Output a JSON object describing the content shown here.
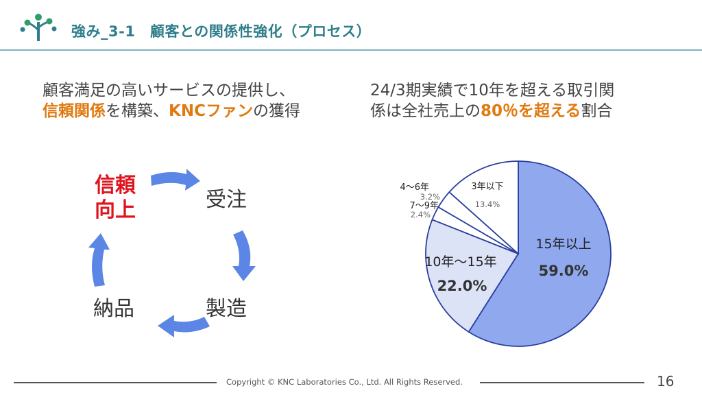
{
  "header": {
    "title": "強み_3-1　顧客との関係性強化（プロセス）",
    "logo_icon": "tree-logo-icon",
    "accent_color": "#2e7d8c"
  },
  "left_lead": {
    "line1": "顧客満足の高いサービスの提供し、",
    "hl1": "信頼関係",
    "mid": "を構築、",
    "hl2": "KNCファン",
    "end": "の獲得"
  },
  "right_lead": {
    "line1": "24/3期実績で10年を超える取引関",
    "line2_start": "係は全社売上の",
    "hl": "80％を超える",
    "line2_end": "割合"
  },
  "cycle": {
    "trust_line1": "信頼",
    "trust_line2": "向上",
    "order": "受注",
    "make": "製造",
    "deliver": "納品",
    "arrow_color": "#5b86e5",
    "trust_color": "#e0141e"
  },
  "chart_data": {
    "type": "pie",
    "start": "12 o'clock",
    "direction": "clockwise",
    "slices": [
      {
        "label": "15年以上",
        "value": 59.0,
        "value_label": "59.0%",
        "color": "#8fa8ee"
      },
      {
        "label": "10年～15年",
        "value": 22.0,
        "value_label": "22.0%",
        "color": "#dde3f7"
      },
      {
        "label": "7～9年",
        "value": 2.4,
        "value_label": "2.4%",
        "color": "#ffffff"
      },
      {
        "label": "4～6年",
        "value": 3.2,
        "value_label": "3.2%",
        "color": "#ffffff"
      },
      {
        "label": "3年以下",
        "value": 13.4,
        "value_label": "13.4%",
        "color": "#ffffff"
      }
    ],
    "edge_color": "#2a3f9e",
    "legend": "none"
  },
  "footer": {
    "copyright": "Copyright © KNC Laboratories Co., Ltd. All Rights Reserved.",
    "page_number": "16"
  }
}
